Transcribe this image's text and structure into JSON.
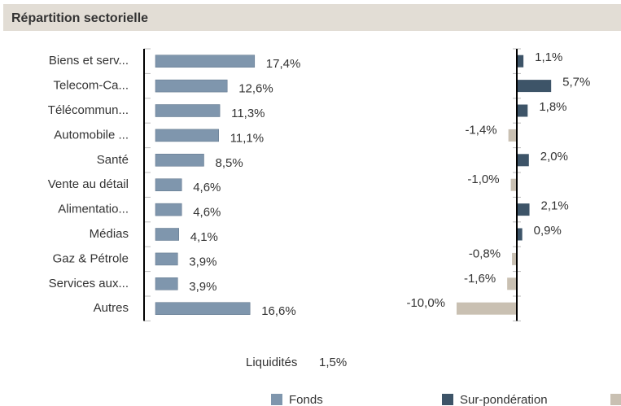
{
  "title": "Répartition sectorielle",
  "chart_data": [
    {
      "type": "hbar",
      "name": "Fonds",
      "color": "#7f96ad",
      "categories": [
        "Biens et serv...",
        "Telecom-Ca...",
        "Télécommun...",
        "Automobile ...",
        "Santé",
        "Vente au détail",
        "Alimentatio...",
        "Médias",
        "Gaz & Pétrole",
        "Services aux...",
        "Autres"
      ],
      "values": [
        17.4,
        12.6,
        11.3,
        11.1,
        8.5,
        4.6,
        4.6,
        4.1,
        3.9,
        3.9,
        16.6
      ],
      "value_labels": [
        "17,4%",
        "12,6%",
        "11,3%",
        "11,1%",
        "8,5%",
        "4,6%",
        "4,6%",
        "4,1%",
        "3,9%",
        "3,9%",
        "16,6%"
      ]
    },
    {
      "type": "diverging",
      "name": "Sur-pondération",
      "color": "#3d5468",
      "negative_color": "#c9c0b2",
      "values": [
        1.1,
        5.7,
        1.8,
        -1.4,
        2.0,
        -1.0,
        2.1,
        0.9,
        -0.8,
        -1.6,
        -10.0
      ],
      "value_labels": [
        "1,1%",
        "5,7%",
        "1,8%",
        "-1,4%",
        "2,0%",
        "-1,0%",
        "2,1%",
        "0,9%",
        "-0,8%",
        "-1,6%",
        "-10,0%"
      ]
    }
  ],
  "cash_label": "Liquidités",
  "cash_value": "1,5%"
}
